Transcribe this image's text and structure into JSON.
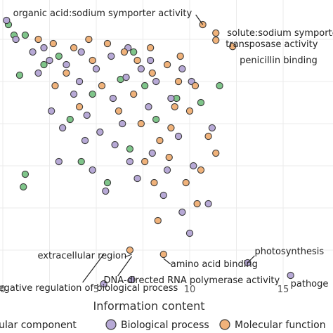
{
  "chart_data": {
    "type": "scatter",
    "xlabel": "Information content",
    "xlim": [
      0,
      17
    ],
    "ylim": [
      -5.5,
      1.0
    ],
    "x_ticks": [
      "0",
      "5",
      "10",
      "15"
    ],
    "x_tick_values": [
      0,
      5,
      10,
      15
    ],
    "grid": true,
    "legend_position": "bottom",
    "series": [
      {
        "name": "Cellular component",
        "color": "#7fc58a",
        "points": [
          [
            0.3,
            0.85
          ],
          [
            0.6,
            0.6
          ],
          [
            1.2,
            0.6
          ],
          [
            0.9,
            -0.35
          ],
          [
            1.2,
            -2.7
          ],
          [
            1.1,
            -3.0
          ],
          [
            2.2,
            -0.1
          ],
          [
            3.0,
            0.1
          ],
          [
            4.8,
            -0.8
          ],
          [
            5.6,
            -2.9
          ],
          [
            6.3,
            -0.45
          ],
          [
            7.6,
            -0.6
          ],
          [
            8.2,
            -1.4
          ],
          [
            10.6,
            -1.0
          ],
          [
            11.6,
            -0.6
          ],
          [
            3.6,
            -1.4
          ],
          [
            6.8,
            -2.1
          ],
          [
            9.3,
            -0.9
          ],
          [
            7.0,
            0.2
          ],
          [
            4.2,
            -2.4
          ]
        ]
      },
      {
        "name": "Biological process",
        "color": "#b7a9d6",
        "points": [
          [
            0.2,
            0.95
          ],
          [
            0.7,
            0.5
          ],
          [
            1.6,
            0.2
          ],
          [
            2.5,
            0.0
          ],
          [
            3.4,
            -0.1
          ],
          [
            4.2,
            0.2
          ],
          [
            5.0,
            -0.2
          ],
          [
            5.8,
            0.1
          ],
          [
            6.6,
            -0.4
          ],
          [
            7.4,
            -0.2
          ],
          [
            8.2,
            -0.5
          ],
          [
            9.0,
            -0.9
          ],
          [
            4.5,
            -1.3
          ],
          [
            5.2,
            -1.7
          ],
          [
            6.0,
            -2.0
          ],
          [
            6.8,
            -2.4
          ],
          [
            7.2,
            -2.8
          ],
          [
            8.0,
            -2.2
          ],
          [
            8.8,
            -2.6
          ],
          [
            9.4,
            -1.8
          ],
          [
            10.2,
            -2.5
          ],
          [
            11.0,
            -3.4
          ],
          [
            3.8,
            -0.8
          ],
          [
            3.2,
            -1.6
          ],
          [
            2.6,
            -1.2
          ],
          [
            5.5,
            -3.1
          ],
          [
            4.8,
            -2.6
          ],
          [
            6.9,
            -5.2
          ],
          [
            5.4,
            -5.3
          ],
          [
            13.1,
            -4.8
          ],
          [
            15.4,
            -5.1
          ],
          [
            10.0,
            -4.1
          ],
          [
            9.6,
            -3.6
          ],
          [
            7.8,
            -1.1
          ],
          [
            6.4,
            -1.5
          ],
          [
            8.6,
            -3.2
          ],
          [
            4.1,
            -0.5
          ],
          [
            1.9,
            -0.3
          ],
          [
            2.2,
            0.3
          ],
          [
            5.9,
            -0.9
          ],
          [
            6.7,
            0.3
          ],
          [
            7.9,
            0.0
          ],
          [
            9.6,
            -0.2
          ],
          [
            10.1,
            -0.5
          ],
          [
            11.2,
            -1.6
          ],
          [
            3.0,
            -2.4
          ],
          [
            4.4,
            -1.9
          ]
        ]
      },
      {
        "name": "Molecular function",
        "color": "#f0b27a",
        "points": [
          [
            1.9,
            0.5
          ],
          [
            2.7,
            0.4
          ],
          [
            3.8,
            0.3
          ],
          [
            4.6,
            0.5
          ],
          [
            5.6,
            0.4
          ],
          [
            6.5,
            0.2
          ],
          [
            7.2,
            0.0
          ],
          [
            8.0,
            -0.3
          ],
          [
            8.8,
            -0.1
          ],
          [
            9.4,
            -0.5
          ],
          [
            10.0,
            -1.2
          ],
          [
            9.0,
            -1.6
          ],
          [
            8.4,
            -1.9
          ],
          [
            7.6,
            -2.4
          ],
          [
            8.1,
            -2.9
          ],
          [
            8.9,
            -2.3
          ],
          [
            9.8,
            -2.9
          ],
          [
            10.6,
            -2.6
          ],
          [
            11.4,
            -2.2
          ],
          [
            8.6,
            -4.6
          ],
          [
            10.7,
            0.85
          ],
          [
            11.4,
            0.65
          ],
          [
            11.4,
            0.48
          ],
          [
            12.3,
            0.33
          ],
          [
            10.4,
            -3.4
          ],
          [
            5.3,
            -0.6
          ],
          [
            4.1,
            -1.1
          ],
          [
            3.4,
            -0.3
          ],
          [
            6.2,
            -1.2
          ],
          [
            7.0,
            -0.8
          ],
          [
            9.2,
            -1.1
          ],
          [
            7.4,
            -1.5
          ],
          [
            8.3,
            -3.8
          ],
          [
            6.8,
            -4.5
          ],
          [
            7.9,
            0.3
          ],
          [
            9.5,
            0.1
          ],
          [
            10.3,
            -0.6
          ],
          [
            11.0,
            -1.8
          ],
          [
            4.8,
            0.0
          ],
          [
            2.8,
            -0.6
          ]
        ]
      }
    ],
    "annotations": [
      {
        "text": "organic acid:sodium symporter activity",
        "x": 10.7,
        "y": 0.85
      },
      {
        "text": "solute:sodium symporter a",
        "x": 11.4,
        "y": 0.65
      },
      {
        "text": "transposase activity",
        "x": 11.4,
        "y": 0.48
      },
      {
        "text": "penicillin binding",
        "x": 12.3,
        "y": 0.33
      },
      {
        "text": "extracellular region",
        "x": 6.9,
        "y": -4.6
      },
      {
        "text": "amino acid binding",
        "x": 8.6,
        "y": -4.7
      },
      {
        "text": "photosynthesis",
        "x": 13.1,
        "y": -4.8
      },
      {
        "text": "DNA-directed RNA polymerase activity",
        "x": 6.9,
        "y": -4.65
      },
      {
        "text": "egative regulation of biological process",
        "x": 5.4,
        "y": -4.6
      },
      {
        "text": "pathoge",
        "x": 15.4,
        "y": -5.1
      }
    ]
  },
  "legend": [
    {
      "label": "Cellular component",
      "color": "#7fc58a"
    },
    {
      "label": "Biological process",
      "color": "#b7a9d6"
    },
    {
      "label": "Molecular function",
      "color": "#f0b27a"
    }
  ]
}
